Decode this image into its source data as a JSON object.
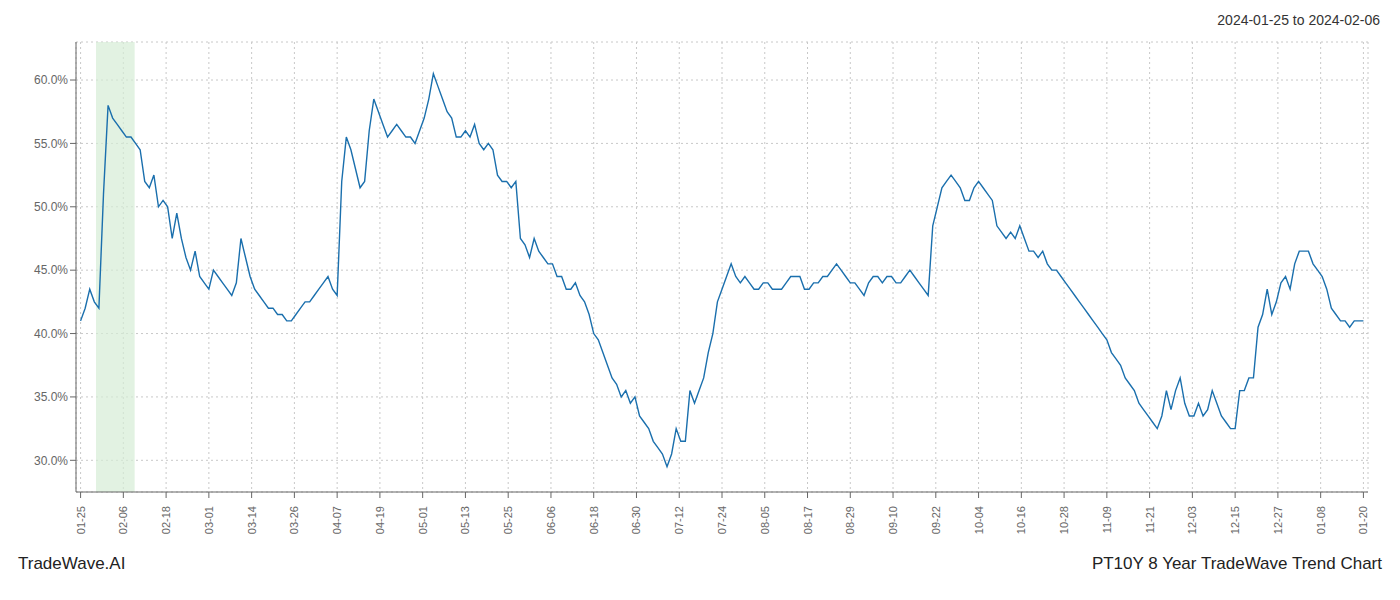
{
  "chart_data": {
    "type": "line",
    "title": "PT10Y 8 Year TradeWave Trend Chart",
    "subtitle": "2024-01-25 to 2024-02-06",
    "annotations": [
      "TradeWave.AI"
    ],
    "color": "#1a6fad",
    "grid": true,
    "xlim": [
      -1,
      281
    ],
    "xticks": [
      {
        "value": 0,
        "label": "01-25"
      },
      {
        "value": 9.333333333333334,
        "label": "02-06"
      },
      {
        "value": 18.666666666666668,
        "label": "02-18"
      },
      {
        "value": 28,
        "label": "03-01"
      },
      {
        "value": 37.333333333333336,
        "label": "03-14"
      },
      {
        "value": 46.66666666666667,
        "label": "03-26"
      },
      {
        "value": 56,
        "label": "04-07"
      },
      {
        "value": 65.33333333333333,
        "label": "04-19"
      },
      {
        "value": 74.66666666666667,
        "label": "05-01"
      },
      {
        "value": 84,
        "label": "05-13"
      },
      {
        "value": 93.33333333333333,
        "label": "05-25"
      },
      {
        "value": 102.66666666666667,
        "label": "06-06"
      },
      {
        "value": 112,
        "label": "06-18"
      },
      {
        "value": 121.33333333333333,
        "label": "06-30"
      },
      {
        "value": 130.66666666666666,
        "label": "07-12"
      },
      {
        "value": 140,
        "label": "07-24"
      },
      {
        "value": 149.33333333333334,
        "label": "08-05"
      },
      {
        "value": 158.66666666666666,
        "label": "08-17"
      },
      {
        "value": 168,
        "label": "08-29"
      },
      {
        "value": 177.33333333333334,
        "label": "09-10"
      },
      {
        "value": 186.66666666666666,
        "label": "09-22"
      },
      {
        "value": 196,
        "label": "10-04"
      },
      {
        "value": 205.33333333333334,
        "label": "10-16"
      },
      {
        "value": 214.66666666666666,
        "label": "10-28"
      },
      {
        "value": 224,
        "label": "11-09"
      },
      {
        "value": 233.33333333333334,
        "label": "11-21"
      },
      {
        "value": 242.66666666666666,
        "label": "12-03"
      },
      {
        "value": 252,
        "label": "12-15"
      },
      {
        "value": 261.3333333333333,
        "label": "12-27"
      },
      {
        "value": 270.6666666666667,
        "label": "01-08"
      },
      {
        "value": 280,
        "label": "01-20"
      }
    ],
    "ylim": [
      27.5,
      63.0
    ],
    "yticks": [
      {
        "value": 30.0,
        "label": "30.0%"
      },
      {
        "value": 35.0,
        "label": "35.0%"
      },
      {
        "value": 40.0,
        "label": "40.0%"
      },
      {
        "value": 45.0,
        "label": "45.0%"
      },
      {
        "value": 50.0,
        "label": "50.0%"
      },
      {
        "value": 55.0,
        "label": "55.0%"
      },
      {
        "value": 60.0,
        "label": "60.0%"
      }
    ],
    "highlight": {
      "x_start": 3.372,
      "x_end": 11.802,
      "color": "#d6ecd6"
    },
    "values": [
      41.0,
      42.0,
      43.5,
      42.5,
      42.0,
      51.0,
      58.0,
      57.0,
      56.5,
      56.0,
      55.5,
      55.5,
      55.0,
      54.5,
      52.0,
      51.5,
      52.5,
      50.0,
      50.5,
      50.0,
      47.5,
      49.5,
      47.5,
      46.0,
      45.0,
      46.5,
      44.5,
      44.0,
      43.5,
      45.0,
      44.5,
      44.0,
      43.5,
      43.0,
      44.0,
      47.5,
      46.0,
      44.5,
      43.5,
      43.0,
      42.5,
      42.0,
      42.0,
      41.5,
      41.5,
      41.0,
      41.0,
      41.5,
      42.0,
      42.5,
      42.5,
      43.0,
      43.5,
      44.0,
      44.5,
      43.5,
      43.0,
      52.0,
      55.5,
      54.5,
      53.0,
      51.5,
      52.0,
      56.0,
      58.5,
      57.5,
      56.5,
      55.5,
      56.0,
      56.5,
      56.0,
      55.5,
      55.5,
      55.0,
      56.0,
      57.0,
      58.5,
      60.5,
      59.5,
      58.5,
      57.5,
      57.0,
      55.5,
      55.5,
      56.0,
      55.5,
      56.5,
      55.0,
      54.5,
      55.0,
      54.5,
      52.5,
      52.0,
      52.0,
      51.5,
      52.0,
      47.5,
      47.0,
      46.0,
      47.5,
      46.5,
      46.0,
      45.5,
      45.5,
      44.5,
      44.5,
      43.5,
      43.5,
      44.0,
      43.0,
      42.5,
      41.5,
      40.0,
      39.5,
      38.5,
      37.5,
      36.5,
      36.0,
      35.0,
      35.5,
      34.5,
      35.0,
      33.5,
      33.0,
      32.5,
      31.5,
      31.0,
      30.5,
      29.5,
      30.5,
      32.5,
      31.5,
      31.5,
      35.5,
      34.5,
      35.5,
      36.5,
      38.5,
      40.0,
      42.5,
      43.5,
      44.5,
      45.5,
      44.5,
      44.0,
      44.5,
      44.0,
      43.5,
      43.5,
      44.0,
      44.0,
      43.5,
      43.5,
      43.5,
      44.0,
      44.5,
      44.5,
      44.5,
      43.5,
      43.5,
      44.0,
      44.0,
      44.5,
      44.5,
      45.0,
      45.5,
      45.0,
      44.5,
      44.0,
      44.0,
      43.5,
      43.0,
      44.0,
      44.5,
      44.5,
      44.0,
      44.5,
      44.5,
      44.0,
      44.0,
      44.5,
      45.0,
      44.5,
      44.0,
      43.5,
      43.0,
      48.5,
      50.0,
      51.5,
      52.0,
      52.5,
      52.0,
      51.5,
      50.5,
      50.5,
      51.5,
      52.0,
      51.5,
      51.0,
      50.5,
      48.5,
      48.0,
      47.5,
      48.0,
      47.5,
      48.5,
      47.5,
      46.5,
      46.5,
      46.0,
      46.5,
      45.5,
      45.0,
      45.0,
      44.5,
      44.0,
      43.5,
      43.0,
      42.5,
      42.0,
      41.5,
      41.0,
      40.5,
      40.0,
      39.5,
      38.5,
      38.0,
      37.5,
      36.5,
      36.0,
      35.5,
      34.5,
      34.0,
      33.5,
      33.0,
      32.5,
      33.5,
      35.5,
      34.0,
      35.5,
      36.5,
      34.5,
      33.5,
      33.5,
      34.5,
      33.5,
      34.0,
      35.5,
      34.5,
      33.5,
      33.0,
      32.5,
      32.5,
      35.5,
      35.5,
      36.5,
      36.5,
      40.5,
      41.5,
      43.5,
      41.5,
      42.5,
      44.0,
      44.5,
      43.5,
      45.5,
      46.5,
      46.5,
      46.5,
      45.5,
      45.0,
      44.5,
      43.5,
      42.0,
      41.5,
      41.0,
      41.0,
      40.5,
      41.0,
      41.0,
      41.0
    ]
  }
}
